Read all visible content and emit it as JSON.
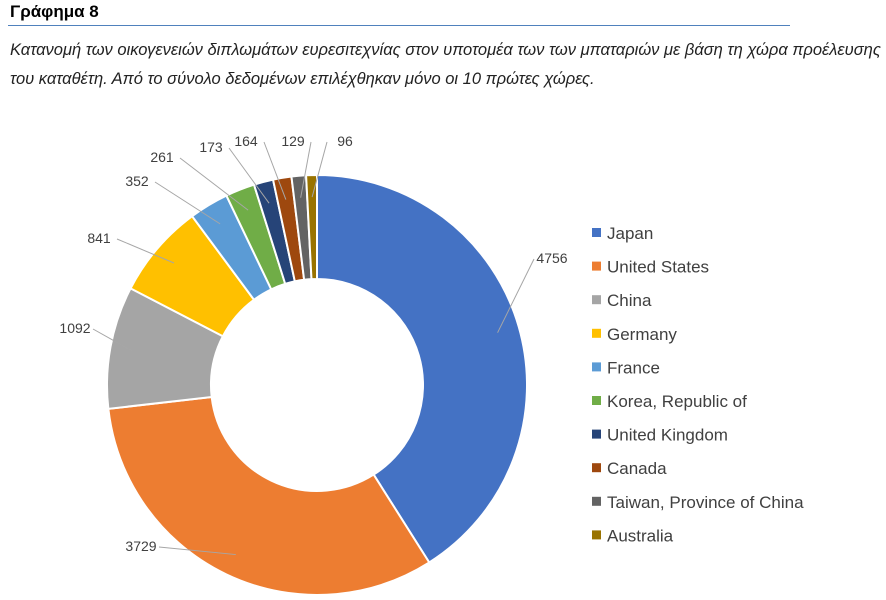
{
  "figure": {
    "title": "Γράφημα 8",
    "caption": "Κατανομή των οικογενειών διπλωμάτων ευρεσιτεχνίας στον υποτομέα των των μπαταριών με βάση τη χώρα προέλευσης του καταθέτη. Από το σύνολο δεδομένων επιλέχθηκαν μόνο οι 10 πρώτες χώρες."
  },
  "chart_data": {
    "type": "pie",
    "variant": "doughnut",
    "legend_position": "right",
    "data_labels": "outside-with-leader-lines",
    "slices": [
      {
        "label": "Japan",
        "value": 4756,
        "color": "#4472c4"
      },
      {
        "label": "United States",
        "value": 3729,
        "color": "#ed7d31"
      },
      {
        "label": "China",
        "value": 1092,
        "color": "#a5a5a5"
      },
      {
        "label": "Germany",
        "value": 841,
        "color": "#ffc000"
      },
      {
        "label": "France",
        "value": 352,
        "color": "#5b9bd5"
      },
      {
        "label": "Korea, Republic of",
        "value": 261,
        "color": "#70ad47"
      },
      {
        "label": "United Kingdom",
        "value": 173,
        "color": "#264478"
      },
      {
        "label": "Canada",
        "value": 164,
        "color": "#9e480e"
      },
      {
        "label": "Taiwan, Province of China",
        "value": 129,
        "color": "#636363"
      },
      {
        "label": "Australia",
        "value": 96,
        "color": "#997300"
      }
    ]
  }
}
